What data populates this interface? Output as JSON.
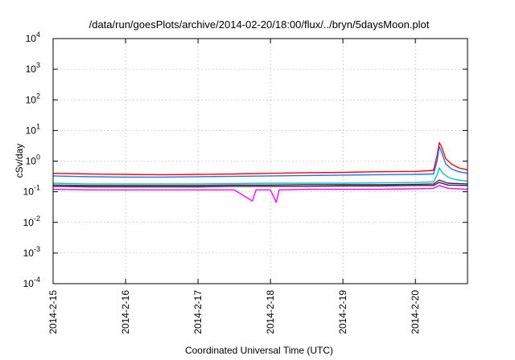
{
  "chart_data": {
    "type": "line",
    "title": "/data/run/goesPlots/archive/2014-02-20/18:00/flux/../bryn/5daysMoon.plot",
    "xlabel": "Coordinated Universal Time (UTC)",
    "ylabel": "cSv/day",
    "yscale": "log",
    "ylim_exp": [
      -4,
      4
    ],
    "y_ticks": [
      {
        "base": "10",
        "exp": "4"
      },
      {
        "base": "10",
        "exp": "3"
      },
      {
        "base": "10",
        "exp": "2"
      },
      {
        "base": "10",
        "exp": "1"
      },
      {
        "base": "10",
        "exp": "0"
      },
      {
        "base": "10",
        "exp": "-1"
      },
      {
        "base": "10",
        "exp": "-2"
      },
      {
        "base": "10",
        "exp": "-3"
      },
      {
        "base": "10",
        "exp": "-4"
      }
    ],
    "x_ticks": [
      "2014-2-15",
      "2014-2-16",
      "2014-2-17",
      "2014-2-18",
      "2014-2-19",
      "2014-2-20"
    ],
    "xlim_days": [
      0,
      5.72
    ],
    "grid": true,
    "series": [
      {
        "color": "#ff0000",
        "points": [
          [
            0,
            0.4
          ],
          [
            0.5,
            0.38
          ],
          [
            1.0,
            0.37
          ],
          [
            1.5,
            0.36
          ],
          [
            2.0,
            0.37
          ],
          [
            2.5,
            0.38
          ],
          [
            3.0,
            0.4
          ],
          [
            3.5,
            0.42
          ],
          [
            4.0,
            0.43
          ],
          [
            4.5,
            0.45
          ],
          [
            5.0,
            0.46
          ],
          [
            5.25,
            0.5
          ],
          [
            5.3,
            1.5
          ],
          [
            5.33,
            4.0
          ],
          [
            5.36,
            3.0
          ],
          [
            5.42,
            1.2
          ],
          [
            5.5,
            0.8
          ],
          [
            5.6,
            0.6
          ],
          [
            5.72,
            0.52
          ]
        ]
      },
      {
        "color": "#1f6fff",
        "points": [
          [
            0,
            0.33
          ],
          [
            0.5,
            0.31
          ],
          [
            1.0,
            0.3
          ],
          [
            1.5,
            0.3
          ],
          [
            2.0,
            0.31
          ],
          [
            2.5,
            0.32
          ],
          [
            3.0,
            0.33
          ],
          [
            3.5,
            0.34
          ],
          [
            4.0,
            0.35
          ],
          [
            4.5,
            0.36
          ],
          [
            5.0,
            0.37
          ],
          [
            5.25,
            0.38
          ],
          [
            5.3,
            1.0
          ],
          [
            5.33,
            3.0
          ],
          [
            5.36,
            2.0
          ],
          [
            5.42,
            0.8
          ],
          [
            5.5,
            0.55
          ],
          [
            5.6,
            0.45
          ],
          [
            5.72,
            0.4
          ]
        ]
      },
      {
        "color": "#00c8b4",
        "points": [
          [
            0,
            0.19
          ],
          [
            0.5,
            0.18
          ],
          [
            1.0,
            0.18
          ],
          [
            1.5,
            0.18
          ],
          [
            2.0,
            0.18
          ],
          [
            2.5,
            0.185
          ],
          [
            3.0,
            0.19
          ],
          [
            3.5,
            0.19
          ],
          [
            4.0,
            0.19
          ],
          [
            4.5,
            0.195
          ],
          [
            5.0,
            0.2
          ],
          [
            5.25,
            0.21
          ],
          [
            5.3,
            0.35
          ],
          [
            5.33,
            0.6
          ],
          [
            5.38,
            0.4
          ],
          [
            5.45,
            0.3
          ],
          [
            5.55,
            0.25
          ],
          [
            5.72,
            0.22
          ]
        ]
      },
      {
        "color": "#5a0f6e",
        "points": [
          [
            0,
            0.165
          ],
          [
            0.5,
            0.16
          ],
          [
            1.0,
            0.16
          ],
          [
            1.5,
            0.16
          ],
          [
            2.0,
            0.16
          ],
          [
            2.5,
            0.165
          ],
          [
            3.0,
            0.165
          ],
          [
            3.5,
            0.17
          ],
          [
            4.0,
            0.17
          ],
          [
            4.5,
            0.17
          ],
          [
            5.0,
            0.175
          ],
          [
            5.25,
            0.18
          ],
          [
            5.33,
            0.24
          ],
          [
            5.45,
            0.19
          ],
          [
            5.72,
            0.18
          ]
        ]
      },
      {
        "color": "#2a2a2a",
        "points": [
          [
            0,
            0.15
          ],
          [
            0.5,
            0.145
          ],
          [
            1.0,
            0.145
          ],
          [
            1.5,
            0.145
          ],
          [
            2.0,
            0.145
          ],
          [
            2.5,
            0.15
          ],
          [
            3.0,
            0.15
          ],
          [
            3.5,
            0.15
          ],
          [
            4.0,
            0.155
          ],
          [
            4.5,
            0.155
          ],
          [
            5.0,
            0.16
          ],
          [
            5.25,
            0.16
          ],
          [
            5.33,
            0.2
          ],
          [
            5.45,
            0.165
          ],
          [
            5.72,
            0.16
          ]
        ]
      },
      {
        "color": "#ff00ff",
        "points": [
          [
            0,
            0.12
          ],
          [
            0.5,
            0.115
          ],
          [
            1.0,
            0.115
          ],
          [
            1.5,
            0.115
          ],
          [
            2.0,
            0.115
          ],
          [
            2.5,
            0.115
          ],
          [
            2.75,
            0.05
          ],
          [
            2.8,
            0.115
          ],
          [
            3.0,
            0.115
          ],
          [
            3.08,
            0.045
          ],
          [
            3.12,
            0.115
          ],
          [
            3.5,
            0.12
          ],
          [
            4.0,
            0.12
          ],
          [
            4.5,
            0.12
          ],
          [
            5.0,
            0.125
          ],
          [
            5.25,
            0.13
          ],
          [
            5.33,
            0.16
          ],
          [
            5.45,
            0.13
          ],
          [
            5.72,
            0.12
          ]
        ]
      }
    ]
  }
}
